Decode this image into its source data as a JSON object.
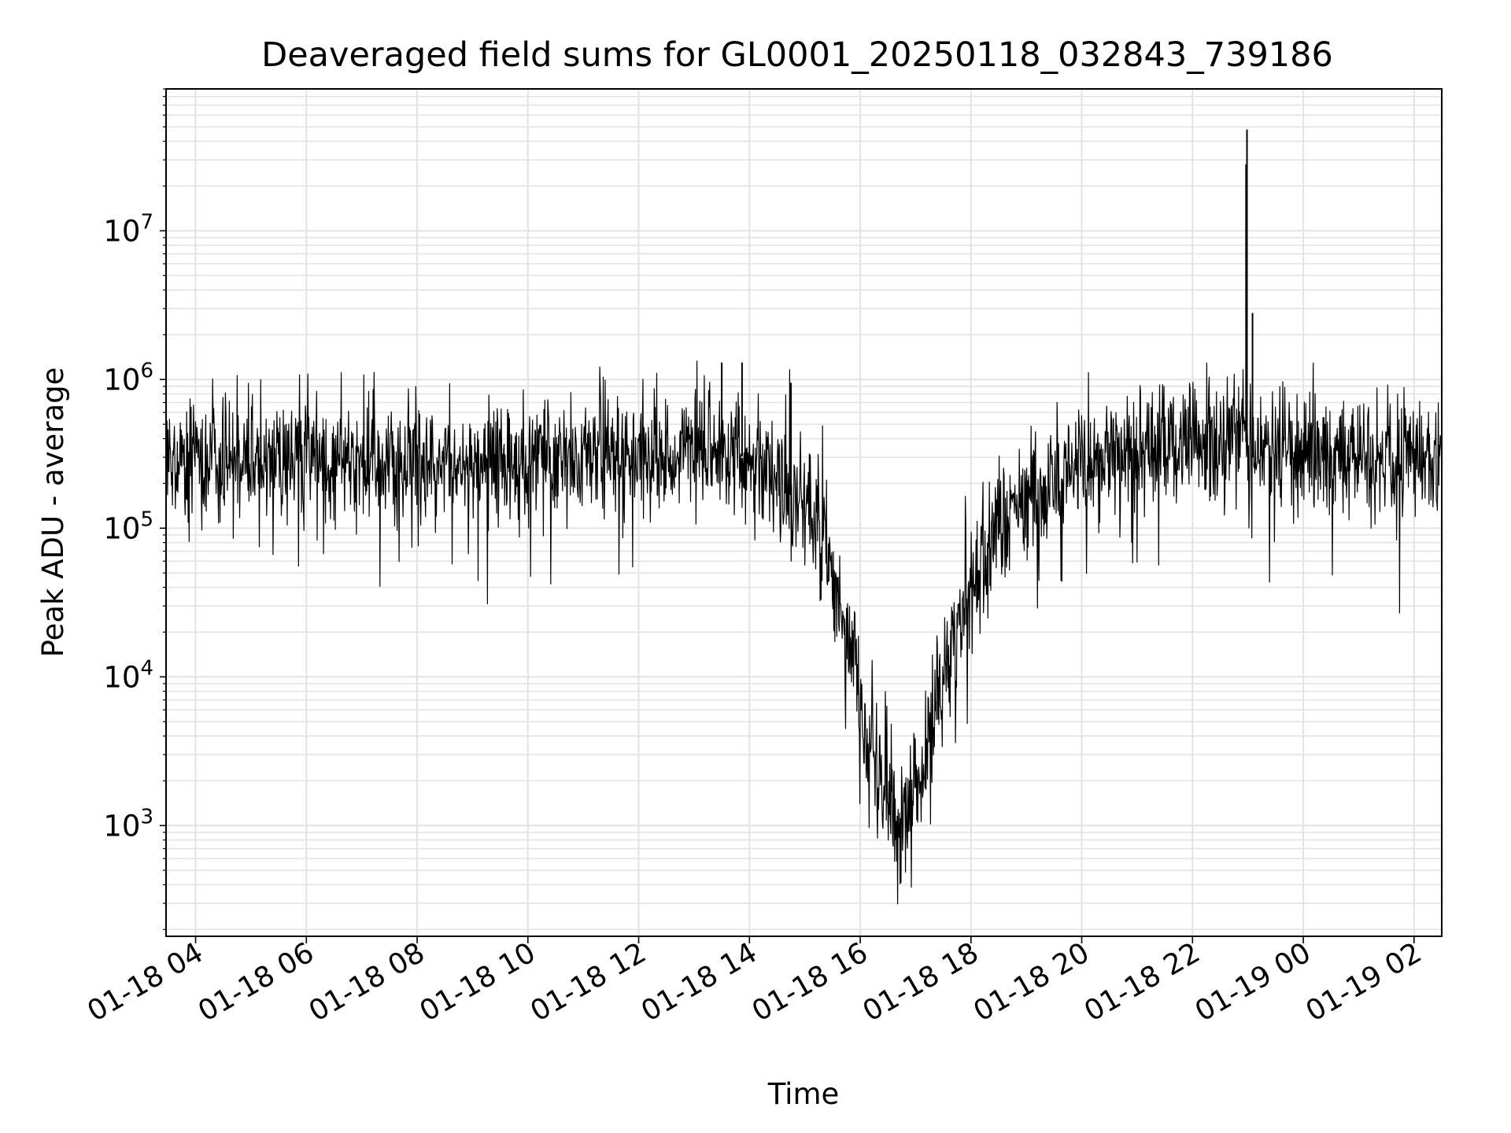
{
  "chart_data": {
    "type": "line",
    "title": "Deaveraged field sums for GL0001_20250118_032843_739186",
    "xlabel": "Time",
    "ylabel": "Peak ADU - average",
    "xlim": [
      "2025-01-18 03:28",
      "2025-01-19 02:30"
    ],
    "ylim": [
      180,
      90000000
    ],
    "yscale": "log",
    "grid": true,
    "grid_minor": true,
    "line_color": "#000000",
    "x_tick_labels": [
      "01-18 04",
      "01-18 06",
      "01-18 08",
      "01-18 10",
      "01-18 12",
      "01-18 14",
      "01-18 16",
      "01-18 18",
      "01-18 20",
      "01-18 22",
      "01-19 00",
      "01-19 02"
    ],
    "x_ticks": [
      "2025-01-18 04:00",
      "2025-01-18 06:00",
      "2025-01-18 08:00",
      "2025-01-18 10:00",
      "2025-01-18 12:00",
      "2025-01-18 14:00",
      "2025-01-18 16:00",
      "2025-01-18 18:00",
      "2025-01-18 20:00",
      "2025-01-18 22:00",
      "2025-01-19 00:00",
      "2025-01-19 02:00"
    ],
    "y_tick_labels": [
      {
        "value": 1000,
        "base": "10",
        "exp": "3"
      },
      {
        "value": 10000,
        "base": "10",
        "exp": "4"
      },
      {
        "value": 100000,
        "base": "10",
        "exp": "5"
      },
      {
        "value": 1000000,
        "base": "10",
        "exp": "6"
      },
      {
        "value": 10000000,
        "base": "10",
        "exp": "7"
      }
    ],
    "series": [
      {
        "color": "#000000",
        "trend": [
          {
            "x": "2025-01-18 03:28",
            "y": 300000
          },
          {
            "x": "2025-01-18 05:00",
            "y": 300000
          },
          {
            "x": "2025-01-18 07:00",
            "y": 280000
          },
          {
            "x": "2025-01-18 09:00",
            "y": 270000
          },
          {
            "x": "2025-01-18 11:00",
            "y": 300000
          },
          {
            "x": "2025-01-18 13:00",
            "y": 330000
          },
          {
            "x": "2025-01-18 14:00",
            "y": 300000
          },
          {
            "x": "2025-01-18 14:45",
            "y": 180000
          },
          {
            "x": "2025-01-18 15:15",
            "y": 100000
          },
          {
            "x": "2025-01-18 15:40",
            "y": 30000
          },
          {
            "x": "2025-01-18 16:00",
            "y": 7000
          },
          {
            "x": "2025-01-18 16:20",
            "y": 1800
          },
          {
            "x": "2025-01-18 16:45",
            "y": 1000
          },
          {
            "x": "2025-01-18 17:05",
            "y": 1800
          },
          {
            "x": "2025-01-18 17:20",
            "y": 5000
          },
          {
            "x": "2025-01-18 17:35",
            "y": 15000
          },
          {
            "x": "2025-01-18 17:55",
            "y": 35000
          },
          {
            "x": "2025-01-18 18:30",
            "y": 110000
          },
          {
            "x": "2025-01-18 19:00",
            "y": 160000
          },
          {
            "x": "2025-01-18 19:30",
            "y": 210000
          },
          {
            "x": "2025-01-18 20:00",
            "y": 260000
          },
          {
            "x": "2025-01-18 20:30",
            "y": 320000
          },
          {
            "x": "2025-01-18 21:00",
            "y": 350000
          },
          {
            "x": "2025-01-18 22:00",
            "y": 380000
          },
          {
            "x": "2025-01-18 23:00",
            "y": 380000
          },
          {
            "x": "2025-01-19 00:00",
            "y": 300000
          },
          {
            "x": "2025-01-19 02:30",
            "y": 300000
          }
        ],
        "peaks": [
          {
            "x": "2025-01-18 22:59",
            "y": 48000000
          },
          {
            "x": "2025-01-18 22:58",
            "y": 28000000
          },
          {
            "x": "2025-01-18 23:05",
            "y": 2800000
          },
          {
            "x": "2025-01-18 13:52",
            "y": 1300000
          },
          {
            "x": "2025-01-18 13:30",
            "y": 1300000
          },
          {
            "x": "2025-01-18 14:45",
            "y": 950000
          }
        ]
      }
    ]
  }
}
